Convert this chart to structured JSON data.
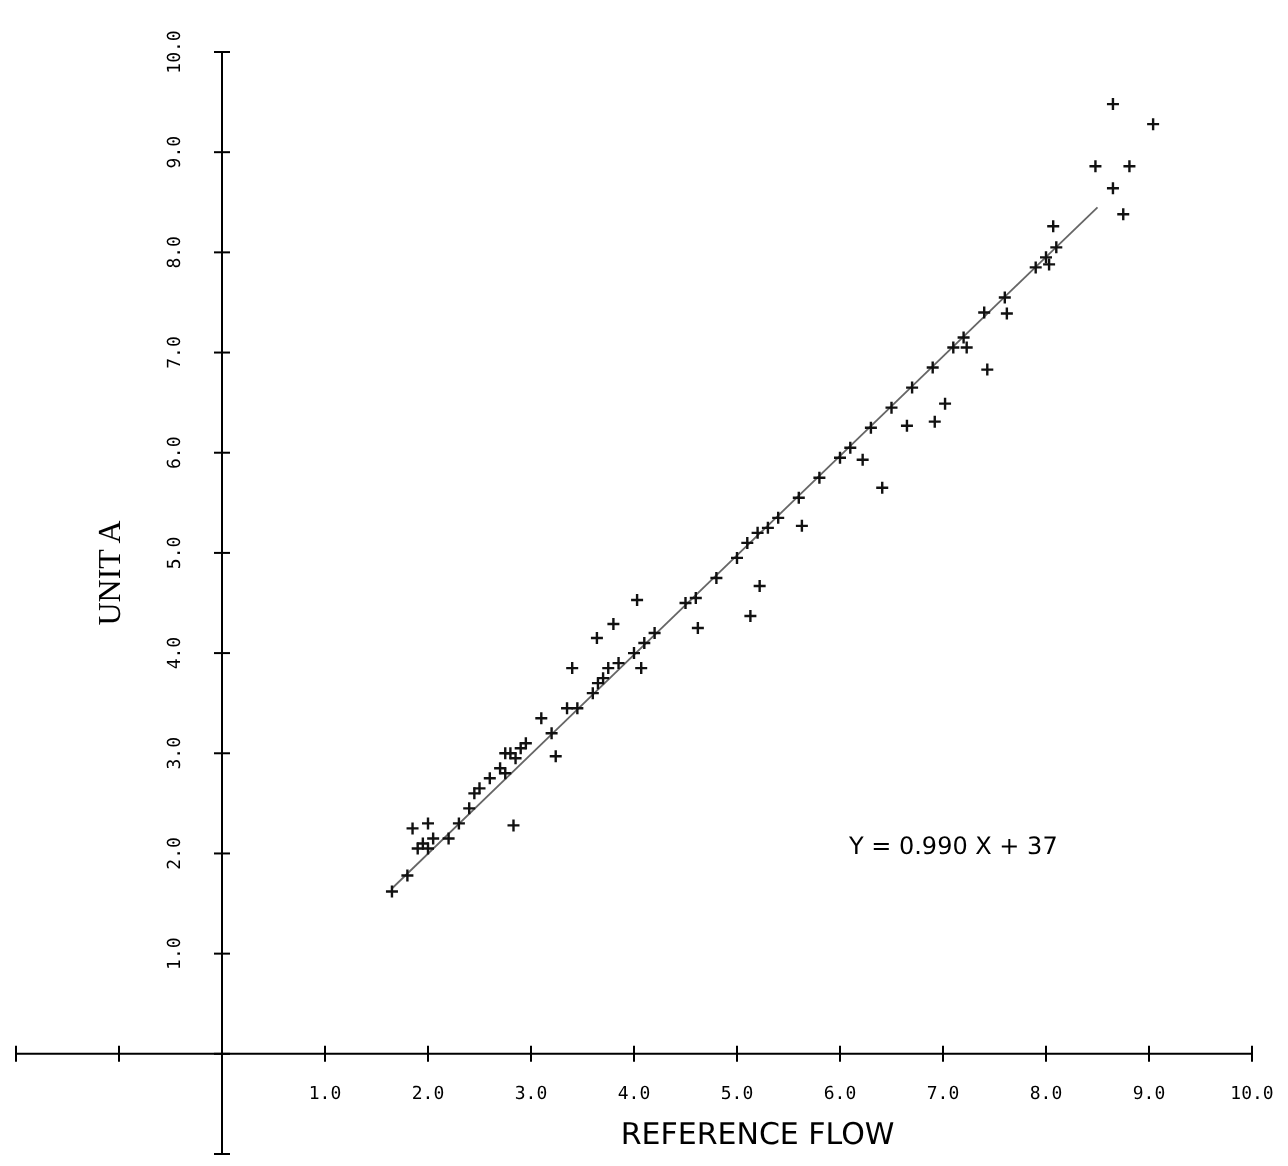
{
  "chart_data": {
    "type": "scatter",
    "xlabel": "REFERENCE FLOW",
    "ylabel": "UNIT A",
    "xlim": [
      -2,
      10
    ],
    "ylim": [
      -1,
      10
    ],
    "xticks": [
      {
        "value": -2,
        "label": null
      },
      {
        "value": -1,
        "label": null
      },
      {
        "value": 0,
        "label": null
      },
      {
        "value": 1,
        "label": "1.0"
      },
      {
        "value": 2,
        "label": "2.0"
      },
      {
        "value": 3,
        "label": "3.0"
      },
      {
        "value": 4,
        "label": "4.0"
      },
      {
        "value": 5,
        "label": "5.0"
      },
      {
        "value": 6,
        "label": "6.0"
      },
      {
        "value": 7,
        "label": "7.0"
      },
      {
        "value": 8,
        "label": "8.0"
      },
      {
        "value": 9,
        "label": "9.0"
      },
      {
        "value": 10,
        "label": "10.0"
      }
    ],
    "yticks": [
      {
        "value": -1,
        "label": null
      },
      {
        "value": 0,
        "label": null
      },
      {
        "value": 1,
        "label": "1.0"
      },
      {
        "value": 2,
        "label": "2.0"
      },
      {
        "value": 3,
        "label": "3.0"
      },
      {
        "value": 4,
        "label": "4.0"
      },
      {
        "value": 5,
        "label": "5.0"
      },
      {
        "value": 6,
        "label": "6.0"
      },
      {
        "value": 7,
        "label": "7.0"
      },
      {
        "value": 8,
        "label": "8.0"
      },
      {
        "value": 9,
        "label": "9.0"
      },
      {
        "value": 10,
        "label": "10.0"
      }
    ],
    "grid": false,
    "marker": "cross",
    "annotations": [
      "Y = 0.990 X + 37"
    ],
    "series": [
      {
        "type": "scatter",
        "color": "#111111",
        "x": [
          1.65,
          1.8,
          1.9,
          1.95,
          2.0,
          2.05,
          1.85,
          2.2,
          2.3,
          2.4,
          2.45,
          2.5,
          2.6,
          2.7,
          2.75,
          2.8,
          2.85,
          2.9,
          2.95,
          2.75,
          3.2,
          3.1,
          3.35,
          3.45,
          3.6,
          3.65,
          3.7,
          3.75,
          3.85,
          3.4,
          3.8,
          3.64,
          4.03,
          4.07,
          3.24,
          4.62,
          5.13,
          4.0,
          4.1,
          4.2,
          4.5,
          4.6,
          4.8,
          5.0,
          5.1,
          5.2,
          5.3,
          5.4,
          5.6,
          5.8,
          6.0,
          6.1,
          6.3,
          6.5,
          6.7,
          6.9,
          7.1,
          7.2,
          7.4,
          7.6,
          7.9,
          8.0,
          8.1,
          6.65,
          6.92,
          7.02,
          6.22,
          6.41,
          7.23,
          7.62,
          8.48,
          8.65,
          8.65,
          9.04,
          8.81,
          8.75,
          8.07,
          8.03,
          5.22,
          5.63,
          7.43,
          2.0,
          2.83
        ],
        "values": [
          1.62,
          1.78,
          2.05,
          2.1,
          2.05,
          2.15,
          2.25,
          2.15,
          2.3,
          2.45,
          2.6,
          2.65,
          2.75,
          2.85,
          2.8,
          3.0,
          2.95,
          3.05,
          3.1,
          3.0,
          3.2,
          3.35,
          3.45,
          3.45,
          3.6,
          3.7,
          3.75,
          3.85,
          3.9,
          3.85,
          4.29,
          4.15,
          4.53,
          3.85,
          2.97,
          4.25,
          4.37,
          4.0,
          4.1,
          4.2,
          4.5,
          4.55,
          4.75,
          4.95,
          5.1,
          5.2,
          5.25,
          5.35,
          5.55,
          5.75,
          5.95,
          6.05,
          6.25,
          6.45,
          6.65,
          6.85,
          7.05,
          7.15,
          7.4,
          7.55,
          7.85,
          7.95,
          8.05,
          6.27,
          6.31,
          6.49,
          5.93,
          5.65,
          7.05,
          7.39,
          8.86,
          8.64,
          9.48,
          9.28,
          8.86,
          8.38,
          8.26,
          7.88,
          4.67,
          5.27,
          6.83,
          2.3,
          2.28
        ]
      },
      {
        "type": "line",
        "color": "#666666",
        "marker": "none",
        "x": [
          1.65,
          8.5
        ],
        "values": [
          1.65,
          8.45
        ]
      }
    ]
  }
}
